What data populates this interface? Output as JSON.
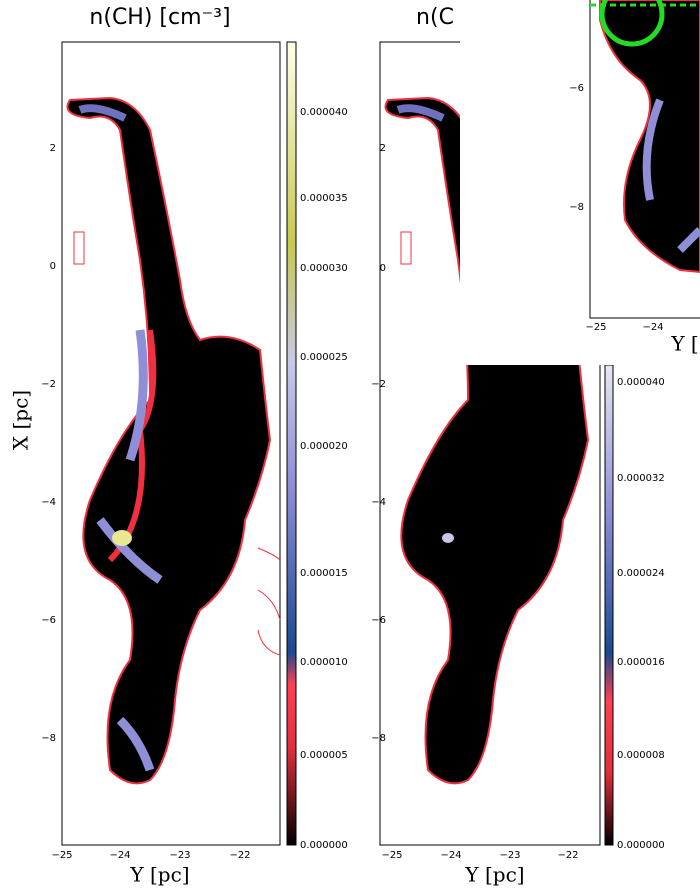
{
  "panels": [
    {
      "title": "n(CH) [cm⁻³]",
      "xlabel": "Y [pc]",
      "ylabel": "X [pc]",
      "xticks": [
        "−25",
        "−24",
        "−23",
        "−22"
      ],
      "yticks": [
        "2",
        "0",
        "−2",
        "−4",
        "−6",
        "−8"
      ],
      "colorbar_ticks": [
        "0.000040",
        "0.000035",
        "0.000030",
        "0.000025",
        "0.000020",
        "0.000015",
        "0.000010",
        "0.000005",
        "0.000000"
      ]
    },
    {
      "title": "n(C",
      "xlabel": "Y [pc]",
      "xticks": [
        "−25",
        "−24",
        "−23",
        "−22"
      ],
      "yticks": [
        "2",
        "0",
        "−2",
        "−4",
        "−6",
        "−8"
      ],
      "colorbar_ticks": [
        "0.000040",
        "0.000032",
        "0.000024",
        "0.000016",
        "0.000008",
        "0.000000"
      ]
    },
    {
      "xlabel": "Y [",
      "xticks": [
        "−25",
        "−24"
      ],
      "yticks": [
        "−6",
        "−8"
      ]
    }
  ]
}
